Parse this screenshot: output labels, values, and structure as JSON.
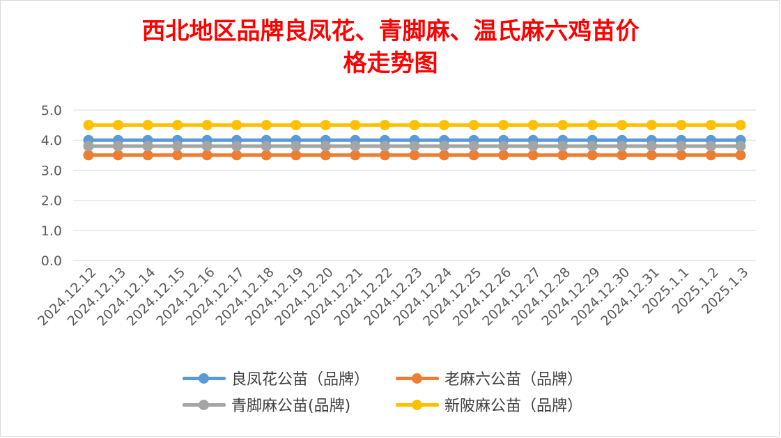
{
  "chart_data": {
    "type": "line",
    "title": "西北地区品牌良凤花、青脚麻、温氏麻六鸡苗价格走势图",
    "title_lines": [
      "西北地区品牌良凤花、青脚麻、温氏麻六鸡苗价",
      "格走势图"
    ],
    "xlabel": "",
    "ylabel": "",
    "categories": [
      "2024.12.12",
      "2024.12.13",
      "2024.12.14",
      "2024.12.15",
      "2024.12.16",
      "2024.12.17",
      "2024.12.18",
      "2024.12.19",
      "2024.12.20",
      "2024.12.21",
      "2024.12.22",
      "2024.12.23",
      "2024.12.24",
      "2024.12.25",
      "2024.12.26",
      "2024.12.27",
      "2024.12.28",
      "2024.12.29",
      "2024.12.30",
      "2024.12.31",
      "2025.1.1",
      "2025.1.2",
      "2025.1.3"
    ],
    "ylim": [
      0,
      5
    ],
    "yticks": [
      "0.0",
      "1.0",
      "2.0",
      "3.0",
      "4.0",
      "5.0"
    ],
    "grid": true,
    "legend_position": "bottom",
    "series": [
      {
        "name": "良凤花公苗（品牌）",
        "color": "#5b9bd5",
        "values": [
          4.0,
          4.0,
          4.0,
          4.0,
          4.0,
          4.0,
          4.0,
          4.0,
          4.0,
          4.0,
          4.0,
          4.0,
          4.0,
          4.0,
          4.0,
          4.0,
          4.0,
          4.0,
          4.0,
          4.0,
          4.0,
          4.0,
          4.0
        ]
      },
      {
        "name": "老麻六公苗（品牌）",
        "color": "#ed7d31",
        "values": [
          3.5,
          3.5,
          3.5,
          3.5,
          3.5,
          3.5,
          3.5,
          3.5,
          3.5,
          3.5,
          3.5,
          3.5,
          3.5,
          3.5,
          3.5,
          3.5,
          3.5,
          3.5,
          3.5,
          3.5,
          3.5,
          3.5,
          3.5
        ]
      },
      {
        "name": "青脚麻公苗(品牌)",
        "color": "#a5a5a5",
        "values": [
          3.8,
          3.8,
          3.8,
          3.8,
          3.8,
          3.8,
          3.8,
          3.8,
          3.8,
          3.8,
          3.8,
          3.8,
          3.8,
          3.8,
          3.8,
          3.8,
          3.8,
          3.8,
          3.8,
          3.8,
          3.8,
          3.8,
          3.8
        ]
      },
      {
        "name": "新陂麻公苗（品牌）",
        "color": "#ffc000",
        "values": [
          4.5,
          4.5,
          4.5,
          4.5,
          4.5,
          4.5,
          4.5,
          4.5,
          4.5,
          4.5,
          4.5,
          4.5,
          4.5,
          4.5,
          4.5,
          4.5,
          4.5,
          4.5,
          4.5,
          4.5,
          4.5,
          4.5,
          4.5
        ]
      }
    ]
  },
  "title_color": "#ff0000"
}
